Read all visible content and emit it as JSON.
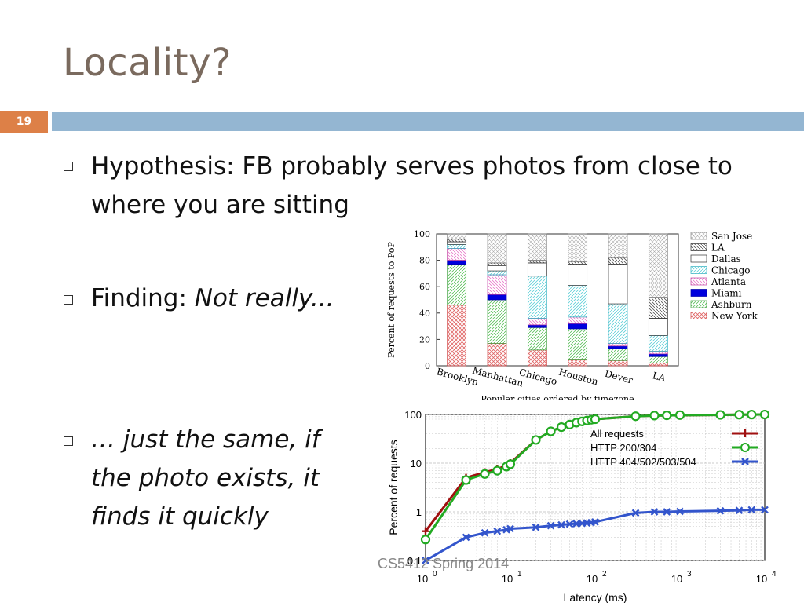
{
  "slide": {
    "title": "Locality?",
    "number": "19",
    "footer": "CS5412 Spring 2014"
  },
  "bullets": [
    {
      "text": "Hypothesis: FB probably serves photos from close to where you are sitting"
    },
    {
      "prefix": "Finding: ",
      "text": "Not really..."
    },
    {
      "text": "… just the same, if the photo exists, it finds it quickly"
    }
  ],
  "chart_data": [
    {
      "type": "bar",
      "stacked": true,
      "ylabel": "Percent of requests to PoP",
      "xlabel": "Popular cities ordered by timezone",
      "ylim": [
        0,
        100
      ],
      "yticks": [
        0,
        20,
        40,
        60,
        80,
        100
      ],
      "categories": [
        "Brooklyn",
        "Manhattan",
        "Chicago",
        "Houston",
        "Dever",
        "LA"
      ],
      "series": [
        {
          "name": "New York",
          "color": "#e06666",
          "values": [
            46,
            17,
            12,
            5,
            4,
            2
          ]
        },
        {
          "name": "Ashburn",
          "color": "#7fd27f",
          "values": [
            31,
            33,
            17,
            23,
            9,
            5
          ]
        },
        {
          "name": "Miami",
          "color": "#0000dd",
          "values": [
            3,
            4,
            2,
            4,
            2,
            2
          ]
        },
        {
          "name": "Atlanta",
          "color": "#e879c9",
          "values": [
            9,
            15,
            5,
            5,
            2,
            2
          ]
        },
        {
          "name": "Chicago",
          "color": "#7fe0e8",
          "values": [
            3,
            3,
            32,
            24,
            30,
            12
          ]
        },
        {
          "name": "Dallas",
          "color": "#ffffff",
          "values": [
            2,
            4,
            10,
            16,
            30,
            13
          ]
        },
        {
          "name": "LA",
          "color": "#999999",
          "values": [
            2,
            2,
            2,
            2,
            5,
            16
          ]
        },
        {
          "name": "San Jose",
          "color": "#dddddd",
          "values": [
            4,
            22,
            20,
            21,
            18,
            48
          ]
        }
      ],
      "legend_position": "right"
    },
    {
      "type": "line",
      "xlabel": "Latency (ms)",
      "ylabel": "Percent of requests",
      "x_scale": "log",
      "y_scale": "log",
      "xlim": [
        1,
        10000
      ],
      "ylim": [
        0.1,
        100
      ],
      "xticks": [
        "10^0",
        "10^1",
        "10^2",
        "10^3",
        "10^4"
      ],
      "yticks": [
        "0.1",
        "1",
        "10",
        "100"
      ],
      "legend_position": "top-right",
      "series": [
        {
          "name": "All requests",
          "color": "#a01010",
          "marker": "plus",
          "x": [
            1,
            3,
            5,
            7,
            9,
            10,
            20,
            30,
            40,
            50,
            60,
            70,
            80,
            90,
            100,
            300,
            500,
            700,
            1000,
            3000,
            5000,
            7000,
            10000
          ],
          "y": [
            0.4,
            5,
            6.5,
            7.5,
            9,
            10,
            30,
            45,
            55,
            62,
            68,
            72,
            75,
            78,
            80,
            92,
            95,
            96,
            97,
            98,
            99,
            99.5,
            99.8
          ]
        },
        {
          "name": "HTTP 200/304",
          "color": "#22aa22",
          "marker": "circle",
          "x": [
            1,
            3,
            5,
            7,
            9,
            10,
            20,
            30,
            40,
            50,
            60,
            70,
            80,
            90,
            100,
            300,
            500,
            700,
            1000,
            3000,
            5000,
            7000,
            10000
          ],
          "y": [
            0.27,
            4.5,
            6,
            7,
            8.5,
            9.5,
            30,
            45,
            55,
            62,
            68,
            72,
            75,
            78,
            80,
            92,
            95,
            96,
            97,
            98,
            99,
            99.5,
            99.8
          ]
        },
        {
          "name": "HTTP 404/502/503/504",
          "color": "#3355cc",
          "marker": "x",
          "x": [
            1,
            3,
            5,
            7,
            9,
            10,
            20,
            30,
            40,
            50,
            60,
            70,
            80,
            90,
            100,
            300,
            500,
            700,
            1000,
            3000,
            5000,
            7000,
            10000
          ],
          "y": [
            0.1,
            0.3,
            0.37,
            0.4,
            0.43,
            0.45,
            0.48,
            0.52,
            0.54,
            0.56,
            0.57,
            0.58,
            0.59,
            0.6,
            0.62,
            0.95,
            1.0,
            1.0,
            1.02,
            1.05,
            1.07,
            1.1,
            1.1
          ]
        }
      ]
    }
  ]
}
